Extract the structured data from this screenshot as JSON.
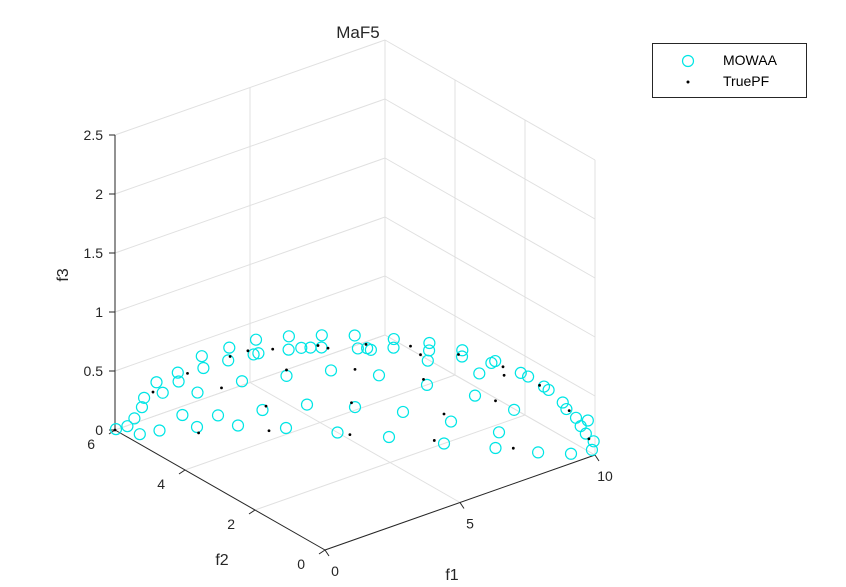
{
  "chart_data": {
    "type": "scatter",
    "projection": "3d",
    "title": "MaF5",
    "xlabel": "f1",
    "ylabel": "f2",
    "zlabel": "f3",
    "xlim": [
      0,
      10
    ],
    "ylim": [
      0,
      6
    ],
    "zlim": [
      0,
      2.5
    ],
    "xticks": [
      "0",
      "5",
      "10"
    ],
    "yticks": [
      "0",
      "2",
      "4",
      "6"
    ],
    "zticks": [
      "0",
      "0.5",
      "1",
      "1.5",
      "2",
      "2.5"
    ],
    "grid": true,
    "legend_position": "top-right",
    "colors": {
      "mowaa": "#00e5e5",
      "truepf": "#000000"
    },
    "series": [
      {
        "name": "MOWAA",
        "marker": "circle-open",
        "points": [
          [
            0.01,
            5.98,
            0.01
          ],
          [
            0.3,
            5.4,
            0.35
          ],
          [
            0.5,
            5.2,
            0.5
          ],
          [
            0.2,
            5.6,
            0.15
          ],
          [
            0.8,
            4.8,
            0.55
          ],
          [
            1.2,
            4.4,
            0.7
          ],
          [
            1.6,
            4.0,
            0.8
          ],
          [
            2.2,
            3.6,
            0.88
          ],
          [
            2.8,
            3.2,
            0.93
          ],
          [
            3.5,
            2.8,
            0.96
          ],
          [
            4.2,
            2.3,
            0.98
          ],
          [
            5.0,
            1.9,
            0.99
          ],
          [
            5.8,
            1.5,
            0.97
          ],
          [
            6.5,
            1.1,
            0.93
          ],
          [
            7.2,
            0.8,
            0.87
          ],
          [
            7.9,
            0.5,
            0.78
          ],
          [
            8.5,
            0.3,
            0.65
          ],
          [
            9.0,
            0.15,
            0.5
          ],
          [
            9.4,
            0.08,
            0.35
          ],
          [
            9.7,
            0.03,
            0.2
          ],
          [
            9.9,
            0.01,
            0.05
          ],
          [
            9.95,
            0.0,
            0.12
          ],
          [
            9.8,
            0.05,
            0.3
          ],
          [
            0.4,
            5.6,
            0.0
          ],
          [
            1.0,
            5.5,
            0.0
          ],
          [
            2.0,
            5.2,
            0.0
          ],
          [
            3.0,
            4.8,
            0.0
          ],
          [
            4.0,
            4.2,
            0.0
          ],
          [
            5.0,
            3.5,
            0.0
          ],
          [
            6.0,
            2.8,
            0.0
          ],
          [
            7.0,
            2.0,
            0.0
          ],
          [
            8.0,
            1.3,
            0.0
          ],
          [
            8.8,
            0.7,
            0.0
          ],
          [
            9.5,
            0.3,
            0.0
          ],
          [
            0.2,
            5.8,
            0.05
          ],
          [
            0.35,
            5.5,
            0.25
          ],
          [
            0.6,
            5.1,
            0.42
          ],
          [
            0.9,
            4.9,
            0.6
          ],
          [
            1.4,
            4.6,
            0.75
          ],
          [
            1.9,
            4.2,
            0.85
          ],
          [
            2.5,
            3.9,
            0.92
          ],
          [
            3.2,
            3.5,
            0.96
          ],
          [
            3.9,
            3.1,
            0.98
          ],
          [
            4.6,
            2.7,
            0.99
          ],
          [
            5.4,
            2.2,
            0.98
          ],
          [
            6.2,
            1.8,
            0.95
          ],
          [
            6.9,
            1.4,
            0.9
          ],
          [
            7.6,
            1.0,
            0.82
          ],
          [
            8.3,
            0.6,
            0.7
          ],
          [
            8.8,
            0.4,
            0.58
          ],
          [
            9.2,
            0.2,
            0.42
          ],
          [
            9.6,
            0.1,
            0.26
          ],
          [
            1.5,
            4.8,
            0.4
          ],
          [
            2.5,
            4.3,
            0.5
          ],
          [
            3.5,
            3.8,
            0.55
          ],
          [
            4.5,
            3.3,
            0.6
          ],
          [
            5.5,
            2.7,
            0.58
          ],
          [
            6.5,
            2.1,
            0.52
          ],
          [
            7.5,
            1.5,
            0.45
          ],
          [
            8.3,
            1.0,
            0.35
          ],
          [
            2.0,
            4.6,
            0.2
          ],
          [
            3.0,
            4.1,
            0.25
          ],
          [
            4.0,
            3.6,
            0.3
          ],
          [
            5.0,
            3.0,
            0.3
          ],
          [
            6.0,
            2.4,
            0.28
          ],
          [
            7.0,
            1.8,
            0.22
          ],
          [
            8.0,
            1.2,
            0.15
          ],
          [
            1.2,
            5.0,
            0.2
          ],
          [
            2.8,
            4.2,
            0.72
          ],
          [
            4.0,
            3.5,
            0.8
          ],
          [
            5.2,
            2.7,
            0.82
          ],
          [
            6.4,
            2.0,
            0.75
          ],
          [
            7.4,
            1.3,
            0.68
          ],
          [
            3.4,
            3.3,
            0.88
          ],
          [
            4.8,
            2.5,
            0.9
          ]
        ]
      },
      {
        "name": "TruePF",
        "marker": "point",
        "points": [
          [
            0.0,
            6.0,
            0.0
          ],
          [
            0.5,
            5.3,
            0.4
          ],
          [
            1.0,
            4.7,
            0.62
          ],
          [
            1.8,
            4.1,
            0.8
          ],
          [
            2.6,
            3.5,
            0.9
          ],
          [
            3.5,
            2.9,
            0.96
          ],
          [
            4.5,
            2.3,
            0.99
          ],
          [
            5.5,
            1.8,
            0.98
          ],
          [
            6.5,
            1.2,
            0.93
          ],
          [
            7.5,
            0.7,
            0.83
          ],
          [
            8.4,
            0.35,
            0.66
          ],
          [
            9.2,
            0.12,
            0.42
          ],
          [
            9.8,
            0.02,
            0.15
          ],
          [
            1.8,
            5.0,
            0.0
          ],
          [
            3.5,
            4.3,
            0.0
          ],
          [
            5.2,
            3.3,
            0.0
          ],
          [
            6.9,
            2.2,
            0.0
          ],
          [
            8.4,
            1.1,
            0.0
          ],
          [
            2.0,
            4.5,
            0.45
          ],
          [
            3.5,
            3.8,
            0.6
          ],
          [
            5.0,
            3.0,
            0.62
          ],
          [
            6.5,
            2.2,
            0.55
          ],
          [
            8.0,
            1.3,
            0.4
          ],
          [
            3.0,
            4.0,
            0.3
          ],
          [
            5.0,
            3.1,
            0.32
          ],
          [
            7.0,
            2.0,
            0.25
          ],
          [
            4.0,
            3.0,
            0.88
          ],
          [
            6.0,
            1.9,
            0.85
          ],
          [
            2.2,
            3.9,
            0.85
          ],
          [
            7.8,
            0.9,
            0.7
          ]
        ]
      }
    ]
  }
}
